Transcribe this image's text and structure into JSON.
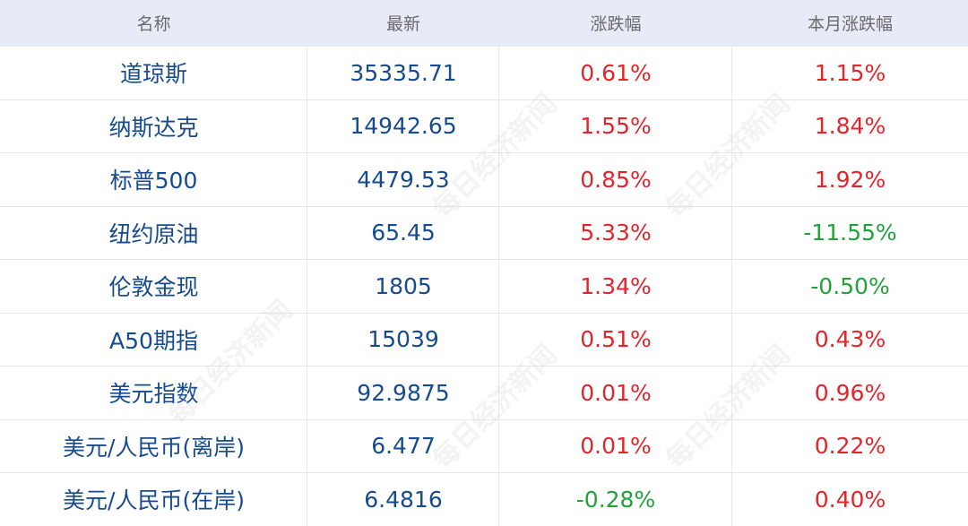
{
  "header": {
    "name_label": "名称",
    "latest_label": "最新",
    "change_label": "涨跌幅",
    "month_change_label": "本月涨跌幅"
  },
  "rows": [
    {
      "name": "道琼斯",
      "latest": "35335.71",
      "change": "0.61%",
      "month_change": "1.15%",
      "change_dir": "up",
      "month_dir": "up"
    },
    {
      "name": "纳斯达克",
      "latest": "14942.65",
      "change": "1.55%",
      "month_change": "1.84%",
      "change_dir": "up",
      "month_dir": "up"
    },
    {
      "name": "标普500",
      "latest": "4479.53",
      "change": "0.85%",
      "month_change": "1.92%",
      "change_dir": "up",
      "month_dir": "up"
    },
    {
      "name": "纽约原油",
      "latest": "65.45",
      "change": "5.33%",
      "month_change": "-11.55%",
      "change_dir": "up",
      "month_dir": "down"
    },
    {
      "name": "伦敦金现",
      "latest": "1805",
      "change": "1.34%",
      "month_change": "-0.50%",
      "change_dir": "up",
      "month_dir": "down"
    },
    {
      "name": "A50期指",
      "latest": "15039",
      "change": "0.51%",
      "month_change": "0.43%",
      "change_dir": "up",
      "month_dir": "up"
    },
    {
      "name": "美元指数",
      "latest": "92.9875",
      "change": "0.01%",
      "month_change": "0.96%",
      "change_dir": "up",
      "month_dir": "up"
    },
    {
      "name": "美元/人民币(离岸)",
      "latest": "6.477",
      "change": "0.01%",
      "month_change": "0.22%",
      "change_dir": "up",
      "month_dir": "up"
    },
    {
      "name": "美元/人民币(在岸)",
      "latest": "6.4816",
      "change": "-0.28%",
      "month_change": "0.40%",
      "change_dir": "down",
      "month_dir": "up"
    }
  ],
  "watermark": "每日经济新闻",
  "colors": {
    "header_bg": "#e7eaf7",
    "name_text": "#164b8f",
    "up": "#e0252c",
    "down": "#21a33a"
  }
}
